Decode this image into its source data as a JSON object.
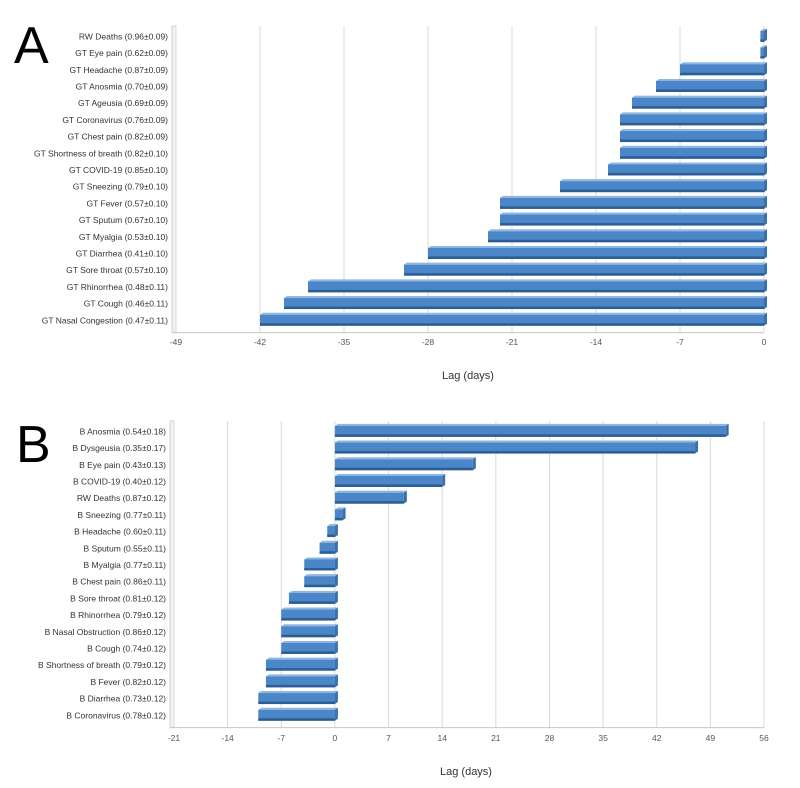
{
  "colors": {
    "bar": "#4a86c8",
    "bar_light": "#8fb7e3",
    "bar_dark": "#2c5e93",
    "grid": "#d9d9d9"
  },
  "chart_data": [
    {
      "panel": "A",
      "type": "bar",
      "orientation": "horizontal",
      "xlabel": "Lag (days)",
      "xlim": [
        -49,
        0
      ],
      "xticks": [
        -49,
        -42,
        -35,
        -28,
        -21,
        -14,
        -7,
        0
      ],
      "categories": [
        "RW Deaths (0.96±0.09)",
        "GT Eye pain (0.62±0.09)",
        "GT Headache (0.87±0.09)",
        "GT Anosmia (0.70±0.09)",
        "GT Ageusia (0.69±0.09)",
        "GT Coronavirus (0.76±0.09)",
        "GT Chest pain (0.82±0.09)",
        "GT Shortness of breath (0.82±0.10)",
        "GT COVID-19 (0.85±0.10)",
        "GT Sneezing (0.79±0.10)",
        "GT Fever (0.57±0.10)",
        "GT Sputum (0.67±0.10)",
        "GT Myalgia (0.53±0.10)",
        "GT Diarrhea (0.41±0.10)",
        "GT Sore throat (0.57±0.10)",
        "GT Rhinorrhea (0.48±0.11)",
        "GT Cough (0.46±0.11)",
        "GT Nasal Congestion (0.47±0.11)"
      ],
      "values": [
        -0.3,
        -0.3,
        -7,
        -9,
        -11,
        -12,
        -12,
        -12,
        -13,
        -17,
        -22,
        -22,
        -23,
        -28,
        -30,
        -38,
        -40,
        -42
      ]
    },
    {
      "panel": "B",
      "type": "bar",
      "orientation": "horizontal",
      "xlabel": "Lag (days)",
      "xlim": [
        -21,
        56
      ],
      "xticks": [
        -21,
        -14,
        -7,
        0,
        7,
        14,
        21,
        28,
        35,
        42,
        49,
        56
      ],
      "categories": [
        "B  Anosmia (0.54±0.18)",
        "B Dysgeusia (0.35±0.17)",
        "B  Eye pain (0.43±0.13)",
        "B  COVID-19 (0.40±0.12)",
        "RW Deaths (0.87±0.12)",
        "B  Sneezing (0.77±0.11)",
        "B  Headache (0.60±0.11)",
        "B  Sputum (0.55±0.11)",
        "B  Myalgia (0.77±0.11)",
        "B  Chest pain (0.86±0.11)",
        "B  Sore throat (0.81±0.12)",
        "B  Rhinorrhea (0.79±0.12)",
        "B  Nasal Obstruction  (0.86±0.12)",
        "B  Cough (0.74±0.12)",
        "B  Shortness of breath (0.79±0.12)",
        "B  Fever (0.82±0.12)",
        "B  Diarrhea (0.73±0.12)",
        "B  Coronavirus (0.78±0.12)"
      ],
      "values": [
        51,
        47,
        18,
        14,
        9,
        1,
        -1,
        -2,
        -4,
        -4,
        -6,
        -7,
        -7,
        -7,
        -9,
        -9,
        -10,
        -10
      ]
    }
  ]
}
